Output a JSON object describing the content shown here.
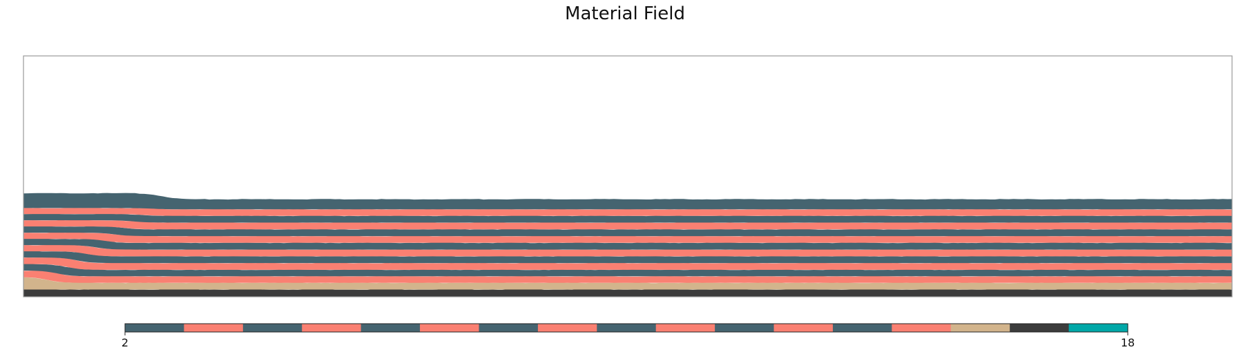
{
  "chart_data": {
    "type": "heatmap",
    "title": "Material Field",
    "xlabel": "",
    "ylabel": "",
    "grid": false,
    "colorbar": {
      "orientation": "horizontal",
      "placement": "bottom",
      "min": 2,
      "max": 18,
      "tick_labels": [
        "2",
        "18"
      ],
      "colors": [
        "#456470",
        "#fa8072",
        "#456470",
        "#fa8072",
        "#456470",
        "#fa8072",
        "#456470",
        "#fa8072",
        "#456470",
        "#fa8072",
        "#456470",
        "#fa8072",
        "#456470",
        "#fa8072",
        "#d2b48c",
        "#3c3c3c",
        "#00a8a8"
      ]
    },
    "field": {
      "x_range": [
        0,
        1
      ],
      "y_range": [
        0,
        1
      ],
      "free_surface_level": 0.405,
      "bump_surface_level": 0.43,
      "bump_end_x": 0.115,
      "layers": [
        {
          "material": 16,
          "color": "#3c3c3c",
          "bottom": 0.0,
          "top": 0.03
        },
        {
          "material": 15,
          "color": "#d2b48c",
          "bottom": 0.03,
          "top": 0.058
        },
        {
          "material": 14,
          "color": "#fa8072",
          "bottom": 0.058,
          "top": 0.085
        },
        {
          "material": 13,
          "color": "#456470",
          "bottom": 0.085,
          "top": 0.112
        },
        {
          "material": 12,
          "color": "#fa8072",
          "bottom": 0.112,
          "top": 0.14
        },
        {
          "material": 11,
          "color": "#456470",
          "bottom": 0.14,
          "top": 0.168
        },
        {
          "material": 10,
          "color": "#fa8072",
          "bottom": 0.168,
          "top": 0.196
        },
        {
          "material": 9,
          "color": "#456470",
          "bottom": 0.196,
          "top": 0.224
        },
        {
          "material": 8,
          "color": "#fa8072",
          "bottom": 0.224,
          "top": 0.252
        },
        {
          "material": 7,
          "color": "#456470",
          "bottom": 0.252,
          "top": 0.28
        },
        {
          "material": 6,
          "color": "#fa8072",
          "bottom": 0.28,
          "top": 0.308
        },
        {
          "material": 5,
          "color": "#456470",
          "bottom": 0.308,
          "top": 0.336
        },
        {
          "material": 4,
          "color": "#fa8072",
          "bottom": 0.336,
          "top": 0.363
        },
        {
          "material": 3,
          "color": "#456470",
          "bottom": 0.363,
          "top": 0.405
        }
      ]
    }
  }
}
